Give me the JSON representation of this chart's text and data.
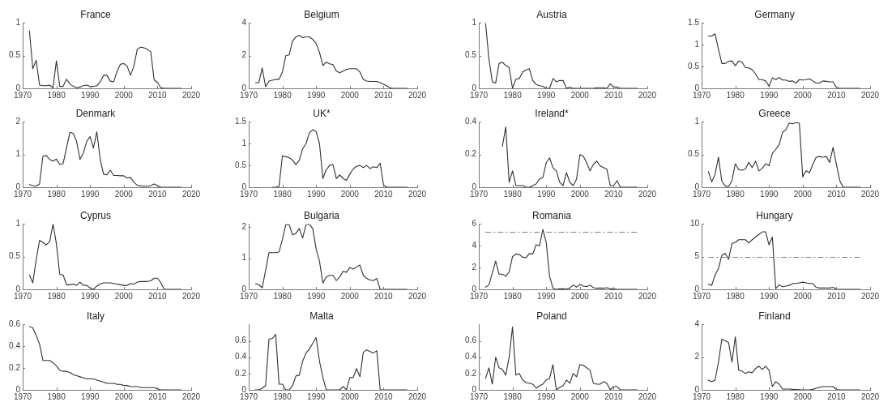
{
  "chart_data": [
    {
      "type": "line",
      "title": "France",
      "x": [
        1972,
        1973,
        1974,
        1975,
        1976,
        1977,
        1978,
        1979,
        1980,
        1981,
        1982,
        1983,
        1984,
        1985,
        1986,
        1987,
        1988,
        1989,
        1990,
        1991,
        1992,
        1993,
        1994,
        1995,
        1996,
        1997,
        1998,
        1999,
        2000,
        2001,
        2002,
        2003,
        2004,
        2005,
        2006,
        2007,
        2008,
        2009,
        2010,
        2011,
        2012,
        2013,
        2014,
        2015,
        2016,
        2017
      ],
      "values": [
        0.88,
        0.3,
        0.43,
        0.05,
        0.04,
        0.04,
        0.05,
        0.01,
        0.42,
        0.03,
        0.03,
        0.14,
        0.07,
        0.03,
        0.01,
        0.02,
        0.04,
        0.05,
        0.03,
        0.03,
        0.04,
        0.1,
        0.2,
        0.2,
        0.11,
        0.1,
        0.26,
        0.37,
        0.38,
        0.34,
        0.2,
        0.34,
        0.6,
        0.63,
        0.62,
        0.6,
        0.56,
        0.13,
        0.09,
        0.01,
        0,
        0,
        0,
        0,
        0,
        0
      ],
      "color": "#303030",
      "xlim": [
        1970,
        2020
      ],
      "xticks": [
        1970,
        1980,
        1990,
        2000,
        2010,
        2020
      ],
      "ylim": [
        0,
        1
      ],
      "yticks": [
        0,
        0.5,
        1
      ]
    },
    {
      "type": "line",
      "title": "Belgium",
      "x": [
        1972,
        1973,
        1974,
        1975,
        1976,
        1977,
        1978,
        1979,
        1980,
        1981,
        1982,
        1983,
        1984,
        1985,
        1986,
        1987,
        1988,
        1989,
        1990,
        1991,
        1992,
        1993,
        1994,
        1995,
        1996,
        1997,
        1998,
        1999,
        2000,
        2001,
        2002,
        2003,
        2004,
        2005,
        2006,
        2007,
        2008,
        2009,
        2010,
        2011,
        2012,
        2013,
        2014,
        2015,
        2016,
        2017
      ],
      "values": [
        0.35,
        0.35,
        1.25,
        0.1,
        0.45,
        0.5,
        0.55,
        0.55,
        1.0,
        2.0,
        2.05,
        2.9,
        3.15,
        3.25,
        3.1,
        3.15,
        3.15,
        3.0,
        2.75,
        2.2,
        1.4,
        1.6,
        1.5,
        1.45,
        1.05,
        0.95,
        1.05,
        1.15,
        1.2,
        1.2,
        1.2,
        1.0,
        0.55,
        0.45,
        0.42,
        0.42,
        0.42,
        0.35,
        0.25,
        0.15,
        0.02,
        0,
        0,
        0,
        0,
        0
      ],
      "color": "#303030",
      "xlim": [
        1970,
        2020
      ],
      "xticks": [
        1970,
        1980,
        1990,
        2000,
        2010,
        2020
      ],
      "ylim": [
        0,
        4
      ],
      "yticks": [
        0,
        2,
        4
      ]
    },
    {
      "type": "line",
      "title": "Austria",
      "x": [
        1972,
        1973,
        1974,
        1975,
        1976,
        1977,
        1978,
        1979,
        1980,
        1981,
        1982,
        1983,
        1984,
        1985,
        1986,
        1987,
        1988,
        1989,
        1990,
        1991,
        1992,
        1993,
        1994,
        1995,
        1996,
        1997,
        1998,
        1999,
        2000,
        2001,
        2002,
        2003,
        2004,
        2005,
        2006,
        2007,
        2008,
        2009,
        2010,
        2011,
        2012,
        2013,
        2014,
        2015,
        2016,
        2017
      ],
      "values": [
        1.0,
        0.45,
        0.1,
        0.08,
        0.38,
        0.4,
        0.35,
        0.32,
        0,
        0.14,
        0.15,
        0.25,
        0.28,
        0.3,
        0.12,
        0.06,
        0.04,
        0.03,
        0,
        0,
        0.15,
        0.1,
        0.12,
        0.12,
        0,
        0.02,
        0,
        0,
        0,
        0,
        0,
        0,
        0,
        0.01,
        0.01,
        0.01,
        0,
        0.07,
        0.02,
        0.02,
        0,
        0,
        0,
        0,
        0,
        0
      ],
      "color": "#303030",
      "xlim": [
        1970,
        2020
      ],
      "xticks": [
        1970,
        1980,
        1990,
        2000,
        2010,
        2020
      ],
      "ylim": [
        0,
        1
      ],
      "yticks": [
        0,
        0.5,
        1
      ]
    },
    {
      "type": "line",
      "title": "Germany",
      "x": [
        1972,
        1973,
        1974,
        1975,
        1976,
        1977,
        1978,
        1979,
        1980,
        1981,
        1982,
        1983,
        1984,
        1985,
        1986,
        1987,
        1988,
        1989,
        1990,
        1991,
        1992,
        1993,
        1994,
        1995,
        1996,
        1997,
        1998,
        1999,
        2000,
        2001,
        2002,
        2003,
        2004,
        2005,
        2006,
        2007,
        2008,
        2009,
        2010,
        2011,
        2012,
        2013,
        2014,
        2015,
        2016,
        2017
      ],
      "values": [
        1.2,
        1.2,
        1.25,
        0.9,
        0.57,
        0.57,
        0.62,
        0.63,
        0.52,
        0.63,
        0.6,
        0.48,
        0.47,
        0.43,
        0.33,
        0.2,
        0.2,
        0.17,
        0.05,
        0.24,
        0.2,
        0.25,
        0.19,
        0.19,
        0.16,
        0.17,
        0.12,
        0.2,
        0.19,
        0.2,
        0.22,
        0.17,
        0.12,
        0.12,
        0.17,
        0.16,
        0.15,
        0.15,
        0.02,
        0,
        0,
        0,
        0,
        0,
        0,
        0
      ],
      "color": "#303030",
      "xlim": [
        1970,
        2020
      ],
      "xticks": [
        1970,
        1980,
        1990,
        2000,
        2010,
        2020
      ],
      "ylim": [
        0,
        1.5
      ],
      "yticks": [
        0,
        0.5,
        1,
        1.5
      ]
    },
    {
      "type": "line",
      "title": "Denmark",
      "x": [
        1972,
        1973,
        1974,
        1975,
        1976,
        1977,
        1978,
        1979,
        1980,
        1981,
        1982,
        1983,
        1984,
        1985,
        1986,
        1987,
        1988,
        1989,
        1990,
        1991,
        1992,
        1993,
        1994,
        1995,
        1996,
        1997,
        1998,
        1999,
        2000,
        2001,
        2002,
        2003,
        2004,
        2005,
        2006,
        2007,
        2008,
        2009,
        2010,
        2011,
        2012,
        2013,
        2014,
        2015,
        2016,
        2017
      ],
      "values": [
        0.08,
        0.05,
        0.03,
        0.1,
        0.95,
        0.97,
        0.85,
        0.8,
        0.86,
        0.7,
        0.72,
        1.2,
        1.68,
        1.65,
        1.4,
        0.85,
        1.05,
        1.4,
        1.55,
        1.2,
        1.7,
        0.85,
        0.4,
        0.38,
        0.52,
        0.36,
        0.36,
        0.35,
        0.35,
        0.28,
        0.3,
        0.15,
        0.06,
        0.04,
        0.03,
        0.03,
        0.05,
        0.1,
        0.05,
        0,
        0,
        0,
        0,
        0,
        0,
        0
      ],
      "color": "#303030",
      "xlim": [
        1970,
        2020
      ],
      "xticks": [
        1970,
        1980,
        1990,
        2000,
        2010,
        2020
      ],
      "ylim": [
        0,
        2
      ],
      "yticks": [
        0,
        1,
        2
      ]
    },
    {
      "type": "line",
      "title": "UK*",
      "x": [
        1977,
        1978,
        1979,
        1980,
        1981,
        1982,
        1983,
        1984,
        1985,
        1986,
        1987,
        1988,
        1989,
        1990,
        1991,
        1992,
        1993,
        1994,
        1995,
        1996,
        1997,
        1998,
        1999,
        2000,
        2001,
        2002,
        2003,
        2004,
        2005,
        2006,
        2007,
        2008,
        2009,
        2010,
        2011,
        2012,
        2013,
        2014,
        2015,
        2016,
        2017
      ],
      "values": [
        0,
        0,
        0.02,
        0.72,
        0.7,
        0.68,
        0.62,
        0.52,
        0.62,
        0.88,
        1.0,
        1.25,
        1.32,
        1.28,
        1.0,
        0.2,
        0.4,
        0.5,
        0.52,
        0.2,
        0.28,
        0.2,
        0.16,
        0.3,
        0.42,
        0.48,
        0.5,
        0.45,
        0.5,
        0.43,
        0.47,
        0.45,
        0.55,
        0.05,
        0,
        0,
        0,
        0,
        0,
        0,
        0
      ],
      "color": "#303030",
      "xlim": [
        1970,
        2020
      ],
      "xticks": [
        1970,
        1980,
        1990,
        2000,
        2010,
        2020
      ],
      "ylim": [
        0,
        1.5
      ],
      "yticks": [
        0,
        0.5,
        1,
        1.5
      ]
    },
    {
      "type": "line",
      "title": "Ireland*",
      "x": [
        1977,
        1978,
        1979,
        1980,
        1981,
        1982,
        1983,
        1984,
        1985,
        1986,
        1987,
        1988,
        1989,
        1990,
        1991,
        1992,
        1993,
        1994,
        1995,
        1996,
        1997,
        1998,
        1999,
        2000,
        2001,
        2002,
        2003,
        2004,
        2005,
        2006,
        2007,
        2008,
        2009,
        2010,
        2011,
        2012,
        2013,
        2014,
        2015,
        2016,
        2017
      ],
      "values": [
        0.25,
        0.37,
        0.03,
        0.1,
        0.01,
        0.01,
        0.01,
        0,
        0,
        0.01,
        0.02,
        0.05,
        0.06,
        0.15,
        0.18,
        0.12,
        0.1,
        0.03,
        0.01,
        0.09,
        0.03,
        0.01,
        0.05,
        0.2,
        0.19,
        0.15,
        0.1,
        0.14,
        0.16,
        0.13,
        0.12,
        0.11,
        0.01,
        0.01,
        0.04,
        0,
        0,
        0,
        0,
        0,
        0
      ],
      "color": "#303030",
      "xlim": [
        1970,
        2020
      ],
      "xticks": [
        1970,
        1980,
        1990,
        2000,
        2010,
        2020
      ],
      "ylim": [
        0,
        0.4
      ],
      "yticks": [
        0,
        0.2,
        0.4
      ]
    },
    {
      "type": "line",
      "title": "Greece",
      "x": [
        1972,
        1973,
        1974,
        1975,
        1976,
        1977,
        1978,
        1979,
        1980,
        1981,
        1982,
        1983,
        1984,
        1985,
        1986,
        1987,
        1988,
        1989,
        1990,
        1991,
        1992,
        1993,
        1994,
        1995,
        1996,
        1997,
        1998,
        1999,
        2000,
        2001,
        2002,
        2003,
        2004,
        2005,
        2006,
        2007,
        2008,
        2009,
        2010,
        2011,
        2012,
        2013,
        2014,
        2015,
        2016,
        2017
      ],
      "values": [
        0.24,
        0.08,
        0.2,
        0.46,
        0.09,
        0.02,
        0.01,
        0.1,
        0.36,
        0.27,
        0.26,
        0.28,
        0.38,
        0.3,
        0.4,
        0.25,
        0.29,
        0.36,
        0.33,
        0.52,
        0.58,
        0.65,
        0.84,
        0.88,
        0.98,
        0.97,
        0.99,
        0.98,
        0.16,
        0.25,
        0.22,
        0.35,
        0.46,
        0.47,
        0.46,
        0.47,
        0.38,
        0.61,
        0.35,
        0.1,
        0,
        0,
        0,
        0,
        0,
        0
      ],
      "color": "#303030",
      "xlim": [
        1970,
        2020
      ],
      "xticks": [
        1970,
        1980,
        1990,
        2000,
        2010,
        2020
      ],
      "ylim": [
        0,
        1
      ],
      "yticks": [
        0,
        0.5,
        1
      ]
    },
    {
      "type": "line",
      "title": "Cyprus",
      "x": [
        1972,
        1973,
        1974,
        1975,
        1976,
        1977,
        1978,
        1979,
        1980,
        1981,
        1982,
        1983,
        1984,
        1985,
        1986,
        1987,
        1988,
        1989,
        1990,
        1991,
        1992,
        1993,
        1994,
        1995,
        1996,
        1997,
        1998,
        1999,
        2000,
        2001,
        2002,
        2003,
        2004,
        2005,
        2006,
        2007,
        2008,
        2009,
        2010,
        2011,
        2012,
        2013,
        2014,
        2015,
        2016,
        2017
      ],
      "values": [
        0.22,
        0.1,
        0.45,
        0.75,
        0.72,
        0.68,
        0.73,
        1.0,
        0.7,
        0.23,
        0.22,
        0.07,
        0.07,
        0.08,
        0.06,
        0.11,
        0.06,
        0.06,
        0.02,
        0,
        0.05,
        0.08,
        0.1,
        0.1,
        0.1,
        0.09,
        0.08,
        0.07,
        0.06,
        0.06,
        0.09,
        0.08,
        0.11,
        0.12,
        0.12,
        0.12,
        0.13,
        0.17,
        0.17,
        0.1,
        0,
        0,
        0,
        0,
        0,
        0
      ],
      "color": "#303030",
      "xlim": [
        1970,
        2020
      ],
      "xticks": [
        1970,
        1980,
        1990,
        2000,
        2010,
        2020
      ],
      "ylim": [
        0,
        1
      ],
      "yticks": [
        0,
        0.5,
        1
      ]
    },
    {
      "type": "line",
      "title": "Bulgaria",
      "x": [
        1972,
        1973,
        1974,
        1975,
        1976,
        1977,
        1978,
        1979,
        1980,
        1981,
        1982,
        1983,
        1984,
        1985,
        1986,
        1987,
        1988,
        1989,
        1990,
        1991,
        1992,
        1993,
        1994,
        1995,
        1996,
        1997,
        1998,
        1999,
        2000,
        2001,
        2002,
        2003,
        2004,
        2005,
        2006,
        2007,
        2008,
        2009,
        2010,
        2011,
        2012,
        2013,
        2014,
        2015,
        2016,
        2017
      ],
      "values": [
        0.18,
        0.15,
        0.05,
        0.6,
        1.18,
        1.18,
        1.18,
        1.2,
        1.6,
        2.08,
        2.08,
        1.75,
        1.8,
        1.95,
        1.65,
        2.08,
        2.1,
        1.95,
        1.3,
        0.9,
        0.2,
        0.4,
        0.45,
        0.45,
        0.28,
        0.4,
        0.58,
        0.55,
        0.7,
        0.65,
        0.72,
        0.78,
        0.45,
        0.35,
        0.3,
        0.28,
        0.35,
        0,
        0,
        0,
        0,
        0,
        0,
        0,
        0,
        0
      ],
      "color": "#303030",
      "xlim": [
        1970,
        2020
      ],
      "xticks": [
        1970,
        1980,
        1990,
        2000,
        2010,
        2020
      ],
      "ylim": [
        0,
        2.1
      ],
      "yticks": [
        0,
        1,
        2
      ]
    },
    {
      "type": "line",
      "title": "Romania",
      "x": [
        1972,
        1973,
        1974,
        1975,
        1976,
        1977,
        1978,
        1979,
        1980,
        1981,
        1982,
        1983,
        1984,
        1985,
        1986,
        1987,
        1988,
        1989,
        1990,
        1991,
        1992,
        1993,
        1994,
        1995,
        1996,
        1997,
        1998,
        1999,
        2000,
        2001,
        2002,
        2003,
        2004,
        2005,
        2006,
        2007,
        2008,
        2009,
        2010,
        2011,
        2012,
        2013,
        2014,
        2015,
        2016,
        2017
      ],
      "values": [
        0.2,
        0.4,
        1.5,
        2.6,
        1.4,
        1.4,
        1.2,
        1.6,
        3.0,
        3.25,
        3.2,
        2.95,
        2.9,
        3.3,
        3.25,
        4.1,
        4.0,
        5.5,
        4.3,
        1.2,
        0.1,
        0,
        0.05,
        0.05,
        0.02,
        0.1,
        0.4,
        0.2,
        0.45,
        0.3,
        0.25,
        0.4,
        0.15,
        0.1,
        0.12,
        0.1,
        0.15,
        0.05,
        0.05,
        0,
        0,
        0,
        0,
        0,
        0,
        0
      ],
      "color": "#303030",
      "xlim": [
        1970,
        2020
      ],
      "xticks": [
        1970,
        1980,
        1990,
        2000,
        2010,
        2020
      ],
      "ylim": [
        0,
        6
      ],
      "yticks": [
        0,
        2,
        4,
        6
      ],
      "ref_lines": [
        {
          "axis": "y",
          "value": 5.25,
          "color": "#808080",
          "line_style": "dashdot"
        }
      ]
    },
    {
      "type": "line",
      "title": "Hungary",
      "x": [
        1972,
        1973,
        1974,
        1975,
        1976,
        1977,
        1978,
        1979,
        1980,
        1981,
        1982,
        1983,
        1984,
        1985,
        1986,
        1987,
        1988,
        1989,
        1990,
        1991,
        1992,
        1993,
        1994,
        1995,
        1996,
        1997,
        1998,
        1999,
        2000,
        2001,
        2002,
        2003,
        2004,
        2005,
        2006,
        2007,
        2008,
        2009,
        2010,
        2011,
        2012,
        2013,
        2014,
        2015,
        2016,
        2017
      ],
      "values": [
        0.8,
        0.6,
        2.2,
        3.2,
        5.2,
        5.5,
        4.6,
        7.0,
        7.2,
        7.6,
        7.6,
        7.6,
        7.1,
        7.6,
        8.0,
        8.4,
        8.8,
        8.8,
        6.8,
        8.0,
        0.1,
        0.7,
        0.4,
        0.5,
        0.6,
        0.9,
        0.9,
        1.0,
        1.1,
        1.0,
        0.9,
        0.9,
        0.3,
        0.2,
        0.2,
        0.2,
        0.2,
        0.3,
        0,
        0,
        0,
        0,
        0,
        0,
        0,
        0
      ],
      "color": "#303030",
      "xlim": [
        1970,
        2020
      ],
      "xticks": [
        1970,
        1980,
        1990,
        2000,
        2010,
        2020
      ],
      "ylim": [
        0,
        10
      ],
      "yticks": [
        0,
        5,
        10
      ],
      "ref_lines": [
        {
          "axis": "y",
          "value": 4.9,
          "color": "#808080",
          "line_style": "dashdot"
        }
      ]
    },
    {
      "type": "line",
      "title": "Italy",
      "x": [
        1972,
        1973,
        1974,
        1975,
        1976,
        1977,
        1978,
        1979,
        1980,
        1981,
        1982,
        1983,
        1984,
        1985,
        1986,
        1987,
        1988,
        1989,
        1990,
        1991,
        1992,
        1993,
        1994,
        1995,
        1996,
        1997,
        1998,
        1999,
        2000,
        2001,
        2002,
        2003,
        2004,
        2005,
        2006,
        2007,
        2008,
        2009,
        2010,
        2011,
        2012,
        2013,
        2014,
        2015,
        2016,
        2017
      ],
      "values": [
        0.58,
        0.57,
        0.5,
        0.42,
        0.27,
        0.27,
        0.27,
        0.25,
        0.22,
        0.18,
        0.17,
        0.17,
        0.16,
        0.14,
        0.13,
        0.12,
        0.11,
        0.1,
        0.1,
        0.1,
        0.09,
        0.08,
        0.07,
        0.06,
        0.06,
        0.06,
        0.05,
        0.05,
        0.04,
        0.04,
        0.03,
        0.03,
        0.03,
        0.02,
        0.02,
        0.02,
        0.02,
        0.02,
        0.01,
        0,
        0,
        0,
        0,
        0,
        0,
        0
      ],
      "color": "#303030",
      "xlim": [
        1970,
        2020
      ],
      "xticks": [
        1970,
        1980,
        1990,
        2000,
        2010,
        2020
      ],
      "ylim": [
        0,
        0.6
      ],
      "yticks": [
        0,
        0.2,
        0.4,
        0.6
      ]
    },
    {
      "type": "line",
      "title": "Malta",
      "x": [
        1972,
        1973,
        1974,
        1975,
        1976,
        1977,
        1978,
        1979,
        1980,
        1981,
        1982,
        1983,
        1984,
        1985,
        1986,
        1987,
        1988,
        1989,
        1990,
        1991,
        1992,
        1993,
        1994,
        1995,
        1996,
        1997,
        1998,
        1999,
        2000,
        2001,
        2002,
        2003,
        2004,
        2005,
        2006,
        2007,
        2008,
        2009,
        2010,
        2011,
        2012,
        2013,
        2014,
        2015,
        2016,
        2017
      ],
      "values": [
        0,
        0,
        0.02,
        0.05,
        0.62,
        0.63,
        0.68,
        0.07,
        0.07,
        0,
        0,
        0.05,
        0.17,
        0.18,
        0.35,
        0.45,
        0.5,
        0.57,
        0.64,
        0.35,
        0.15,
        0,
        0,
        0,
        0,
        0,
        0.04,
        0,
        0.15,
        0.15,
        0.26,
        0.16,
        0.46,
        0.49,
        0.47,
        0.45,
        0.48,
        0,
        0,
        0,
        0,
        0,
        0,
        0,
        0,
        0
      ],
      "color": "#303030",
      "xlim": [
        1970,
        2020
      ],
      "xticks": [
        1970,
        1980,
        1990,
        2000,
        2010,
        2020
      ],
      "ylim": [
        0,
        0.8
      ],
      "yticks": [
        0,
        0.2,
        0.4,
        0.6
      ]
    },
    {
      "type": "line",
      "title": "Poland",
      "x": [
        1972,
        1973,
        1974,
        1975,
        1976,
        1977,
        1978,
        1979,
        1980,
        1981,
        1982,
        1983,
        1984,
        1985,
        1986,
        1987,
        1988,
        1989,
        1990,
        1991,
        1992,
        1993,
        1994,
        1995,
        1996,
        1997,
        1998,
        1999,
        2000,
        2001,
        2002,
        2003,
        2004,
        2005,
        2006,
        2007,
        2008,
        2009,
        2010,
        2011,
        2012,
        2013,
        2014,
        2015,
        2016,
        2017
      ],
      "values": [
        0.14,
        0.27,
        0.07,
        0.4,
        0.27,
        0.25,
        0.18,
        0.4,
        0.77,
        0.18,
        0.2,
        0.12,
        0.09,
        0.08,
        0.07,
        0.02,
        0.05,
        0.07,
        0.12,
        0.14,
        0.31,
        0,
        0.03,
        0.05,
        0.12,
        0.08,
        0.2,
        0.16,
        0.31,
        0.3,
        0.27,
        0.24,
        0.08,
        0.07,
        0.07,
        0.1,
        0.08,
        0,
        0.04,
        0.04,
        0,
        0,
        0,
        0,
        0,
        0
      ],
      "color": "#303030",
      "xlim": [
        1970,
        2020
      ],
      "xticks": [
        1970,
        1980,
        1990,
        2000,
        2010,
        2020
      ],
      "ylim": [
        0,
        0.8
      ],
      "yticks": [
        0,
        0.2,
        0.4,
        0.6
      ]
    },
    {
      "type": "line",
      "title": "Finland",
      "x": [
        1972,
        1973,
        1974,
        1975,
        1976,
        1977,
        1978,
        1979,
        1980,
        1981,
        1982,
        1983,
        1984,
        1985,
        1986,
        1987,
        1988,
        1989,
        1990,
        1991,
        1992,
        1993,
        1994,
        1995,
        1996,
        1997,
        1998,
        1999,
        2000,
        2001,
        2002,
        2003,
        2004,
        2005,
        2006,
        2007,
        2008,
        2009,
        2010,
        2011,
        2012,
        2013,
        2014,
        2015,
        2016,
        2017
      ],
      "values": [
        0.6,
        0.5,
        0.6,
        1.7,
        3.1,
        3.0,
        2.9,
        1.7,
        3.25,
        1.2,
        1.15,
        1.0,
        1.1,
        1.05,
        1.3,
        1.45,
        1.25,
        1.45,
        1.2,
        0.2,
        0.5,
        0.35,
        0.05,
        0.05,
        0.05,
        0.03,
        0.02,
        0.01,
        0,
        0,
        0,
        0.03,
        0.1,
        0.15,
        0.2,
        0.2,
        0.2,
        0.2,
        0.02,
        0,
        0,
        0,
        0,
        0,
        0,
        0
      ],
      "color": "#303030",
      "xlim": [
        1970,
        2020
      ],
      "xticks": [
        1970,
        1980,
        1990,
        2000,
        2010,
        2020
      ],
      "ylim": [
        0,
        4
      ],
      "yticks": [
        0,
        2,
        4
      ]
    }
  ]
}
